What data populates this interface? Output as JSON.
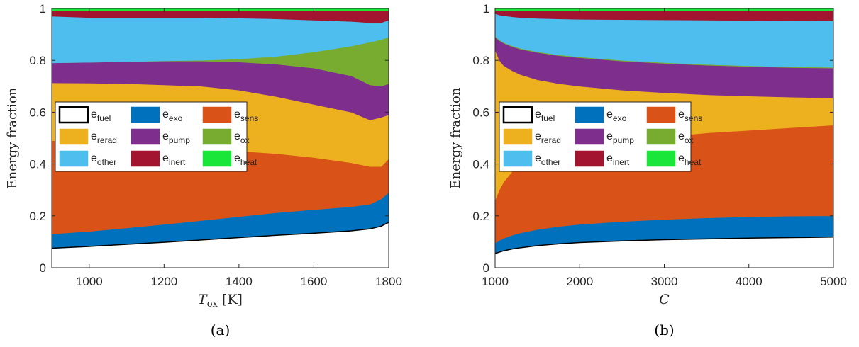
{
  "colors": {
    "fuel": "#ffffff",
    "exo": "#0072BD",
    "sens": "#D95319",
    "rerad": "#EDB120",
    "pump": "#7E2F8E",
    "ox": "#77AC30",
    "other": "#4DBEEE",
    "inert": "#A2142F",
    "heat": "#1AE63A"
  },
  "legend_order": [
    "fuel",
    "exo",
    "sens",
    "rerad",
    "pump",
    "ox",
    "other",
    "inert",
    "heat"
  ],
  "legend_labels": {
    "fuel": {
      "base": "e",
      "sub": "fuel"
    },
    "exo": {
      "base": "e",
      "sub": "exo"
    },
    "sens": {
      "base": "e",
      "sub": "sens"
    },
    "rerad": {
      "base": "e",
      "sub": "rerad"
    },
    "pump": {
      "base": "e",
      "sub": "pump"
    },
    "ox": {
      "base": "e",
      "sub": "ox"
    },
    "other": {
      "base": "e",
      "sub": "other"
    },
    "inert": {
      "base": "e",
      "sub": "inert"
    },
    "heat": {
      "base": "e",
      "sub": "heat"
    }
  },
  "chart_data": [
    {
      "type": "area",
      "stacked": true,
      "caption": "(a)",
      "xlabel": {
        "main": "T",
        "sub": "ox",
        "unit": "[K]"
      },
      "ylabel": "Energy fraction",
      "xlim": [
        900,
        1800
      ],
      "ylim": [
        0,
        1
      ],
      "xticks": [
        "1000",
        "1200",
        "1400",
        "1600",
        "1800"
      ],
      "xtick_values": [
        1000,
        1200,
        1400,
        1600,
        1800
      ],
      "yticks": [
        "0",
        "0.2",
        "0.4",
        "0.6",
        "0.8",
        "1"
      ],
      "ytick_values": [
        0,
        0.2,
        0.4,
        0.6,
        0.8,
        1
      ],
      "legend_position": "middle-left",
      "x": [
        900,
        1000,
        1100,
        1200,
        1300,
        1400,
        1500,
        1600,
        1700,
        1750,
        1780,
        1800
      ],
      "cumulative": {
        "fuel": [
          0.075,
          0.082,
          0.09,
          0.098,
          0.107,
          0.116,
          0.125,
          0.133,
          0.142,
          0.15,
          0.16,
          0.175
        ],
        "exo": [
          0.13,
          0.14,
          0.153,
          0.167,
          0.182,
          0.197,
          0.212,
          0.224,
          0.235,
          0.245,
          0.265,
          0.29
        ],
        "sens": [
          0.49,
          0.49,
          0.48,
          0.47,
          0.46,
          0.45,
          0.44,
          0.425,
          0.405,
          0.39,
          0.39,
          0.42
        ],
        "rerad": [
          0.713,
          0.712,
          0.71,
          0.705,
          0.7,
          0.685,
          0.66,
          0.63,
          0.6,
          0.57,
          0.58,
          0.59
        ],
        "pump": [
          0.79,
          0.792,
          0.795,
          0.797,
          0.797,
          0.793,
          0.785,
          0.77,
          0.74,
          0.705,
          0.7,
          0.71
        ],
        "ox": [
          0.79,
          0.792,
          0.795,
          0.798,
          0.8,
          0.805,
          0.815,
          0.832,
          0.855,
          0.87,
          0.88,
          0.89
        ],
        "other": [
          0.97,
          0.965,
          0.965,
          0.965,
          0.965,
          0.963,
          0.96,
          0.955,
          0.95,
          0.945,
          0.945,
          0.955
        ],
        "inert": [
          0.99,
          0.99,
          0.99,
          0.99,
          0.99,
          0.99,
          0.99,
          0.99,
          0.99,
          0.99,
          0.99,
          0.99
        ],
        "heat": [
          1,
          1,
          1,
          1,
          1,
          1,
          1,
          1,
          1,
          1,
          1,
          1
        ]
      }
    },
    {
      "type": "area",
      "stacked": true,
      "caption": "(b)",
      "xlabel": {
        "main": "C",
        "sub": "",
        "unit": ""
      },
      "ylabel": "Energy fraction",
      "xlim": [
        1000,
        5000
      ],
      "ylim": [
        0,
        1
      ],
      "xticks": [
        "1000",
        "2000",
        "3000",
        "4000",
        "5000"
      ],
      "xtick_values": [
        1000,
        2000,
        3000,
        4000,
        5000
      ],
      "yticks": [
        "0",
        "0.2",
        "0.4",
        "0.6",
        "0.8",
        "1"
      ],
      "ytick_values": [
        0,
        0.2,
        0.4,
        0.6,
        0.8,
        1
      ],
      "legend_position": "middle-left",
      "x": [
        1000,
        1050,
        1100,
        1200,
        1300,
        1500,
        1750,
        2000,
        2500,
        3000,
        3500,
        4000,
        4500,
        5000
      ],
      "cumulative": {
        "fuel": [
          0.055,
          0.06,
          0.065,
          0.072,
          0.077,
          0.085,
          0.092,
          0.097,
          0.103,
          0.108,
          0.111,
          0.114,
          0.116,
          0.118
        ],
        "exo": [
          0.095,
          0.105,
          0.113,
          0.125,
          0.134,
          0.147,
          0.159,
          0.167,
          0.178,
          0.186,
          0.192,
          0.196,
          0.199,
          0.2
        ],
        "sens": [
          0.26,
          0.3,
          0.33,
          0.37,
          0.4,
          0.43,
          0.455,
          0.47,
          0.49,
          0.505,
          0.52,
          0.53,
          0.54,
          0.55
        ],
        "rerad": [
          0.84,
          0.8,
          0.78,
          0.76,
          0.745,
          0.725,
          0.71,
          0.7,
          0.685,
          0.675,
          0.667,
          0.662,
          0.658,
          0.655
        ],
        "pump": [
          0.89,
          0.876,
          0.866,
          0.853,
          0.843,
          0.83,
          0.818,
          0.81,
          0.797,
          0.788,
          0.781,
          0.776,
          0.772,
          0.77
        ],
        "ox": [
          0.893,
          0.879,
          0.869,
          0.856,
          0.846,
          0.833,
          0.821,
          0.813,
          0.8,
          0.791,
          0.784,
          0.779,
          0.775,
          0.773
        ],
        "other": [
          0.98,
          0.975,
          0.972,
          0.968,
          0.965,
          0.962,
          0.96,
          0.958,
          0.957,
          0.956,
          0.955,
          0.954,
          0.953,
          0.952
        ],
        "inert": [
          0.993,
          0.992,
          0.992,
          0.992,
          0.991,
          0.991,
          0.991,
          0.991,
          0.991,
          0.991,
          0.991,
          0.991,
          0.991,
          0.991
        ],
        "heat": [
          1,
          1,
          1,
          1,
          1,
          1,
          1,
          1,
          1,
          1,
          1,
          1,
          1,
          1
        ]
      }
    }
  ]
}
